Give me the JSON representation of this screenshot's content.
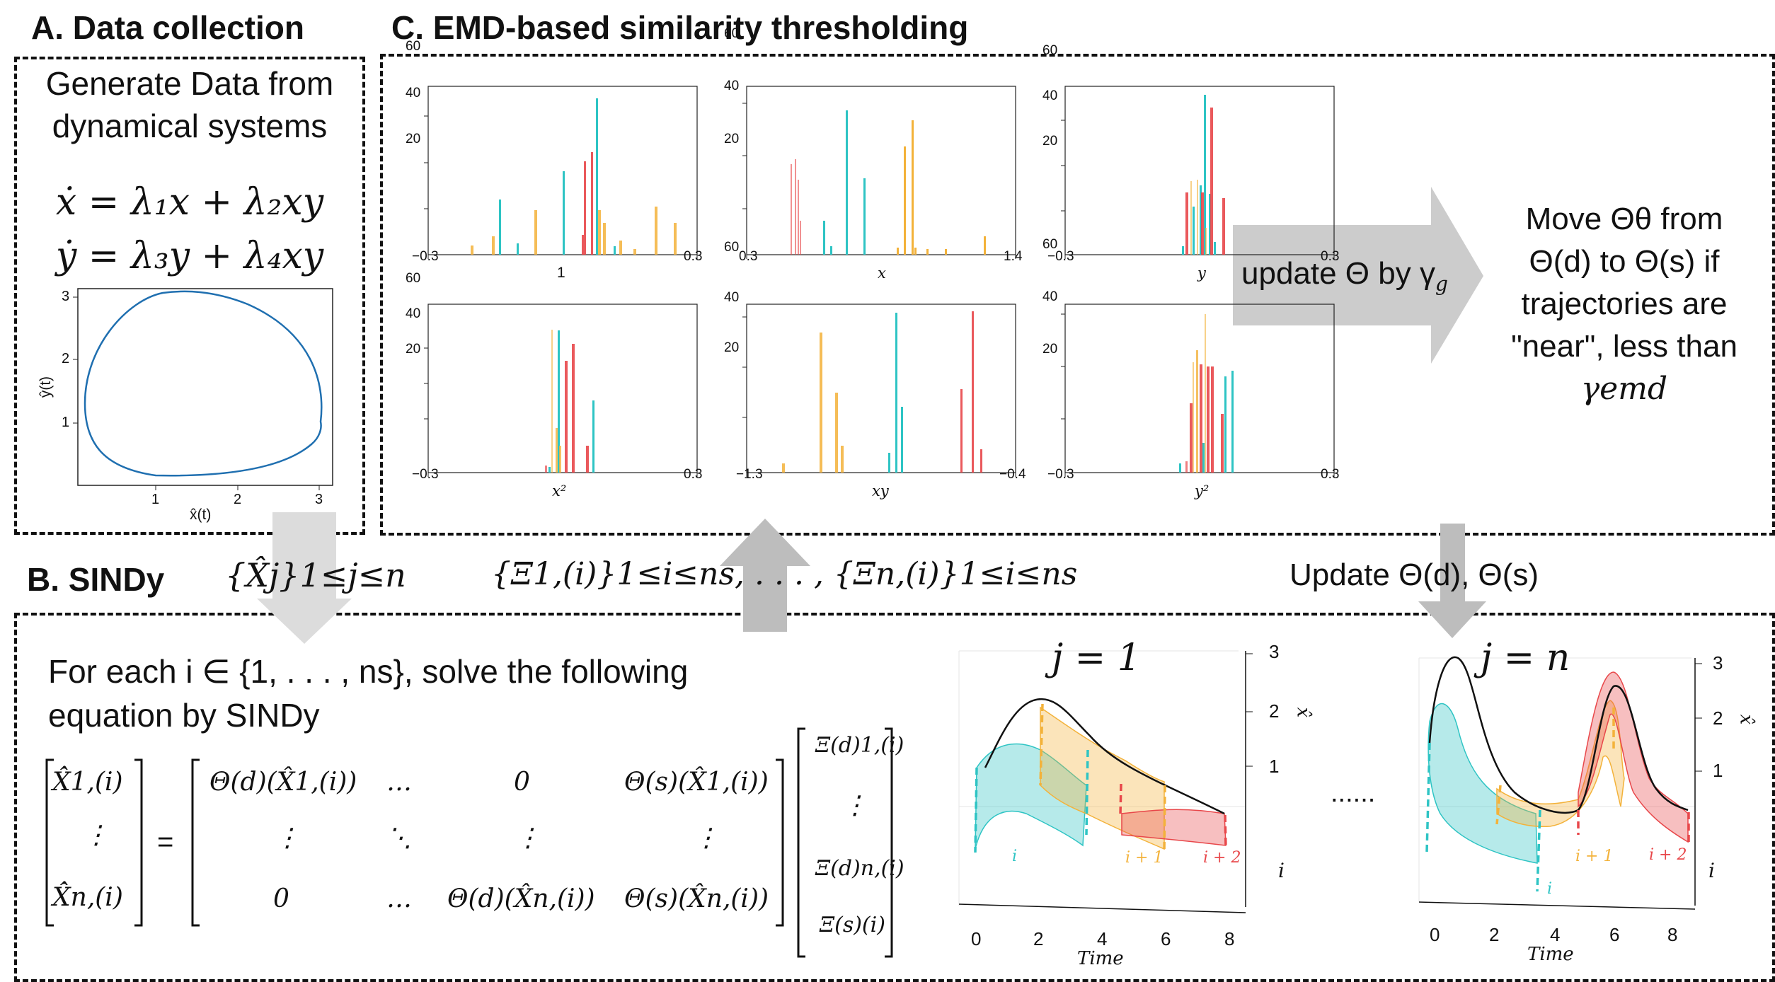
{
  "panels": {
    "a_title": "A. Data collection",
    "b_title": "B. SINDy",
    "c_title": "C. EMD-based similarity thresholding"
  },
  "panel_a": {
    "text_line1": "Generate Data from",
    "text_line2": "dynamical systems",
    "eq1": "ẋ = λ₁x + λ₂xy",
    "eq2": "ẏ = λ₃y + λ₄xy",
    "plot_xlabel": "x̂(t)",
    "plot_ylabel": "ŷ(t)",
    "plot_xticks": [
      "1",
      "2",
      "3"
    ],
    "plot_yticks": [
      "1",
      "2",
      "3"
    ]
  },
  "panel_c": {
    "histograms": [
      {
        "label": "1",
        "xmin": "−0.3",
        "xmax": "0.3",
        "yticks": [
          "20",
          "40",
          "60"
        ]
      },
      {
        "label": "x",
        "xmin": "0.3",
        "xmax": "1.4",
        "yticks": [
          "20",
          "40",
          "60"
        ]
      },
      {
        "label": "y",
        "xmin": "−0.3",
        "xmax": "0.3",
        "yticks": [
          "20",
          "40",
          "60"
        ]
      },
      {
        "label": "x²",
        "xmin": "−0.3",
        "xmax": "0.3",
        "yticks": [
          "20",
          "40",
          "60"
        ]
      },
      {
        "label": "xy",
        "xmin": "−1.3",
        "xmax": "−0.4",
        "yticks": [
          "20",
          "40",
          "60"
        ]
      },
      {
        "label": "y²",
        "xmin": "−0.3",
        "xmax": "0.3",
        "yticks": [
          "20",
          "40",
          "60"
        ]
      }
    ],
    "update_arrow_text": "update Θ by γ",
    "update_arrow_sub": "g",
    "move_text": [
      "Move Θθ from",
      "Θ(d) to Θ(s) if",
      "trajectories are",
      "\"near\", less than",
      "γemd"
    ]
  },
  "connectors": {
    "xhat_set": "{X̂j}1≤j≤n",
    "xi_set": "{Ξ1,(i)}1≤i≤ns, . . . , {Ξn,(i)}1≤i≤ns",
    "update_label": "Update Θ(d), Θ(s)"
  },
  "panel_b": {
    "text_line1": "For each i ∈ {1, . . . , ns}, solve the following",
    "text_line2": "equation by SINDy",
    "lhs": [
      "X̂̇1,(i)",
      "⋮",
      "X̂̇n,(i)"
    ],
    "equals": "=",
    "matrix": [
      [
        "Θ(d)(X̂1,(i))",
        "…",
        "0",
        "Θ(s)(X̂1,(i))"
      ],
      [
        "⋮",
        "⋱",
        "⋮",
        "⋮"
      ],
      [
        "0",
        "…",
        "Θ(d)(X̂n,(i))",
        "Θ(s)(X̂n,(i))"
      ]
    ],
    "rhs": [
      "Ξ(d)1,(i)",
      "⋮",
      "Ξ(d)n,(i)",
      "Ξ(s)(i)"
    ],
    "plot1_title": "j = 1",
    "plot2_title": "j = n",
    "ellipsis": "......",
    "time_label": "Time",
    "time_ticks": [
      "0",
      "2",
      "4",
      "6",
      "8"
    ],
    "z_ticks": [
      "1",
      "2",
      "3"
    ],
    "z_label": "x̂",
    "i_axis_label": "i",
    "window_labels": [
      "i",
      "i + 1",
      "i + 2"
    ]
  },
  "colors": {
    "cyan": "#2ec4c4",
    "orange": "#f3b23a",
    "red": "#e8474a",
    "blue_curve": "#1f6fb0",
    "arrow_gray": "#bdbdbd"
  }
}
